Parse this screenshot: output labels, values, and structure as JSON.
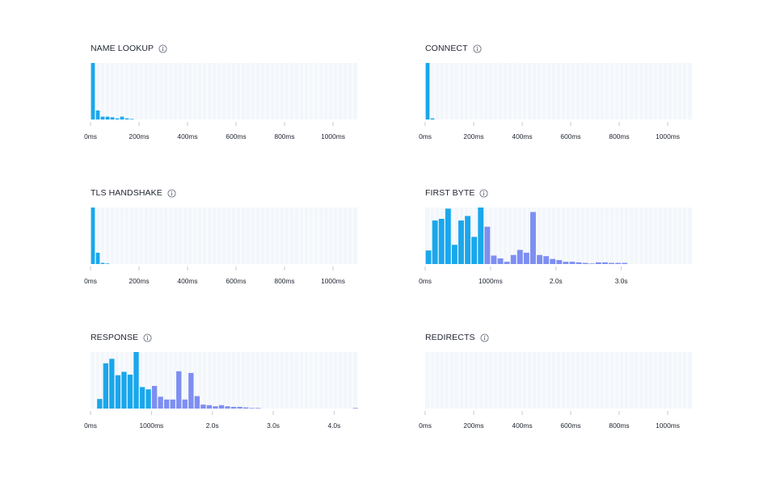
{
  "colors": {
    "phase_a": "#1aa7ec",
    "phase_b": "#7e8ef1",
    "plot_bg": "#f3f7fb",
    "grid": "#ffffff",
    "tick": "#c3cbd6",
    "label": "#1f2430",
    "icon": "#6b7280"
  },
  "panels": [
    {
      "id": "name-lookup",
      "title": "NAME LOOKUP",
      "icon": "info-icon"
    },
    {
      "id": "connect",
      "title": "CONNECT",
      "icon": "info-icon"
    },
    {
      "id": "tls-handshake",
      "title": "TLS HANDSHAKE",
      "icon": "info-icon"
    },
    {
      "id": "first-byte",
      "title": "FIRST BYTE",
      "icon": "info-icon"
    },
    {
      "id": "response",
      "title": "RESPONSE",
      "icon": "info-icon"
    },
    {
      "id": "redirects",
      "title": "REDIRECTS",
      "icon": "info-icon"
    }
  ],
  "chart_data": [
    {
      "id": "name-lookup",
      "type": "bar",
      "title": "NAME LOOKUP",
      "x_unit": "ms",
      "bin_width": 20,
      "x_max": 1100,
      "ylim": [
        0,
        100
      ],
      "x_ticks": [
        0,
        200,
        400,
        600,
        800,
        1000
      ],
      "x_tick_labels": [
        "0ms",
        "200ms",
        "400ms",
        "600ms",
        "800ms",
        "1000ms"
      ],
      "phase_split": null,
      "values": [
        100,
        16,
        5,
        5,
        4,
        2,
        5,
        2,
        1,
        0,
        0,
        0,
        0,
        0,
        0,
        0,
        0,
        0,
        0,
        0,
        0,
        0,
        0,
        0,
        0,
        0,
        0,
        0,
        0,
        0,
        0,
        0,
        0,
        0,
        0,
        0,
        0,
        0,
        0,
        0,
        0,
        0,
        0,
        0,
        0,
        0,
        0,
        0,
        0,
        0,
        0,
        0,
        0,
        0,
        0
      ]
    },
    {
      "id": "connect",
      "type": "bar",
      "title": "CONNECT",
      "x_unit": "ms",
      "bin_width": 20,
      "x_max": 1100,
      "ylim": [
        0,
        100
      ],
      "x_ticks": [
        0,
        200,
        400,
        600,
        800,
        1000
      ],
      "x_tick_labels": [
        "0ms",
        "200ms",
        "400ms",
        "600ms",
        "800ms",
        "1000ms"
      ],
      "phase_split": null,
      "values": [
        100,
        2,
        0,
        0,
        0,
        0,
        0,
        0,
        0,
        0,
        0,
        0,
        0,
        0,
        0,
        0,
        0,
        0,
        0,
        0,
        0,
        0,
        0,
        0,
        0,
        0,
        0,
        0,
        0,
        0,
        0,
        0,
        0,
        0,
        0,
        0,
        0,
        0,
        0,
        0,
        0,
        0,
        0,
        0,
        0,
        0,
        0,
        0,
        0,
        0,
        0,
        0,
        0,
        0,
        0
      ]
    },
    {
      "id": "tls-handshake",
      "type": "bar",
      "title": "TLS HANDSHAKE",
      "x_unit": "ms",
      "bin_width": 20,
      "x_max": 1100,
      "ylim": [
        0,
        100
      ],
      "x_ticks": [
        0,
        200,
        400,
        600,
        800,
        1000
      ],
      "x_tick_labels": [
        "0ms",
        "200ms",
        "400ms",
        "600ms",
        "800ms",
        "1000ms"
      ],
      "phase_split": null,
      "values": [
        100,
        20,
        2,
        1,
        0,
        0,
        0,
        0,
        0,
        0,
        0,
        0,
        0,
        0,
        0,
        0,
        0,
        0,
        0,
        0,
        0,
        0,
        0,
        0,
        0,
        0,
        0,
        0,
        0,
        0,
        0,
        0,
        0,
        0,
        0,
        0,
        0,
        0,
        0,
        0,
        0,
        0,
        0,
        0,
        0,
        0,
        0,
        0,
        0,
        0,
        0,
        0,
        0,
        0,
        0
      ]
    },
    {
      "id": "first-byte",
      "type": "bar",
      "title": "FIRST BYTE",
      "x_unit": "ms",
      "bin_width": 100,
      "x_max": 4080,
      "ylim": [
        0,
        100
      ],
      "x_ticks": [
        0,
        1000,
        2000,
        3000
      ],
      "x_tick_labels": [
        "0ms",
        "1000ms",
        "2.0s",
        "3.0s"
      ],
      "phase_split": 900,
      "values": [
        24,
        77,
        80,
        98,
        34,
        77,
        85,
        48,
        100,
        66,
        15,
        10,
        4,
        16,
        25,
        20,
        92,
        16,
        14,
        9,
        7,
        4,
        4,
        3,
        2,
        1,
        3,
        3,
        2,
        2,
        2,
        0,
        0,
        0,
        0,
        0,
        0,
        0,
        0,
        0,
        0
      ]
    },
    {
      "id": "response",
      "type": "bar",
      "title": "RESPONSE",
      "x_unit": "ms",
      "bin_width": 100,
      "x_max": 4380,
      "ylim": [
        0,
        100
      ],
      "x_ticks": [
        0,
        1000,
        2000,
        3000,
        4000
      ],
      "x_tick_labels": [
        "0ms",
        "1000ms",
        "2.0s",
        "3.0s",
        "4.0s"
      ],
      "phase_split": 1000,
      "values": [
        0,
        17,
        80,
        88,
        59,
        65,
        60,
        100,
        38,
        34,
        40,
        21,
        16,
        16,
        66,
        16,
        63,
        22,
        7,
        6,
        4,
        6,
        4,
        3,
        3,
        2,
        1,
        1,
        0,
        0,
        0,
        0,
        0,
        0,
        0,
        0,
        0,
        0,
        0,
        0,
        0,
        0,
        0,
        1
      ]
    },
    {
      "id": "redirects",
      "type": "bar",
      "title": "REDIRECTS",
      "x_unit": "ms",
      "bin_width": 20,
      "x_max": 1100,
      "ylim": [
        0,
        100
      ],
      "x_ticks": [
        0,
        200,
        400,
        600,
        800,
        1000
      ],
      "x_tick_labels": [
        "0ms",
        "200ms",
        "400ms",
        "600ms",
        "800ms",
        "1000ms"
      ],
      "phase_split": null,
      "values": []
    }
  ]
}
